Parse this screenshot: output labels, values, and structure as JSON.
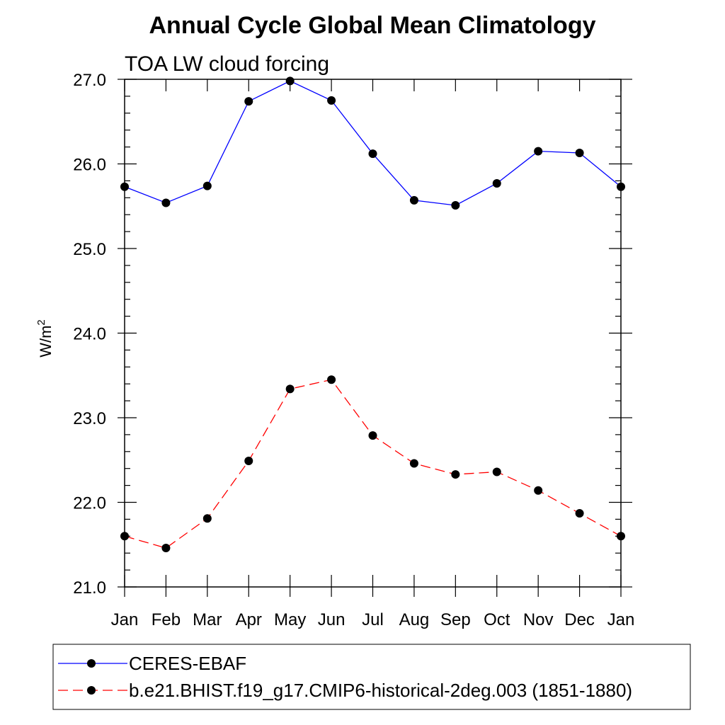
{
  "chart_data": {
    "type": "line",
    "title": "Annual Cycle Global Mean Climatology",
    "subtitle": "TOA LW cloud forcing",
    "ylabel": "W/m",
    "ylabel_superscript": "2",
    "xlabel": "",
    "categories": [
      "Jan",
      "Feb",
      "Mar",
      "Apr",
      "May",
      "Jun",
      "Jul",
      "Aug",
      "Sep",
      "Oct",
      "Nov",
      "Dec",
      "Jan"
    ],
    "ylim": [
      21.0,
      27.0
    ],
    "yticks": [
      "21.0",
      "22.0",
      "23.0",
      "24.0",
      "25.0",
      "26.0",
      "27.0"
    ],
    "grid": false,
    "legend_position": "bottom",
    "series": [
      {
        "name": "CERES-EBAF",
        "color": "#0000ff",
        "line_style": "solid",
        "marker": "filled-circle",
        "values": [
          25.73,
          25.54,
          25.74,
          26.74,
          26.98,
          26.75,
          26.12,
          25.57,
          25.51,
          25.77,
          26.15,
          26.13,
          25.73
        ]
      },
      {
        "name": "b.e21.BHIST.f19_g17.CMIP6-historical-2deg.003 (1851-1880)",
        "color": "#ff0000",
        "line_style": "dashed",
        "marker": "filled-circle",
        "values": [
          21.6,
          21.46,
          21.81,
          22.49,
          23.34,
          23.45,
          22.79,
          22.46,
          22.33,
          22.36,
          22.14,
          21.87,
          21.6
        ]
      }
    ]
  }
}
